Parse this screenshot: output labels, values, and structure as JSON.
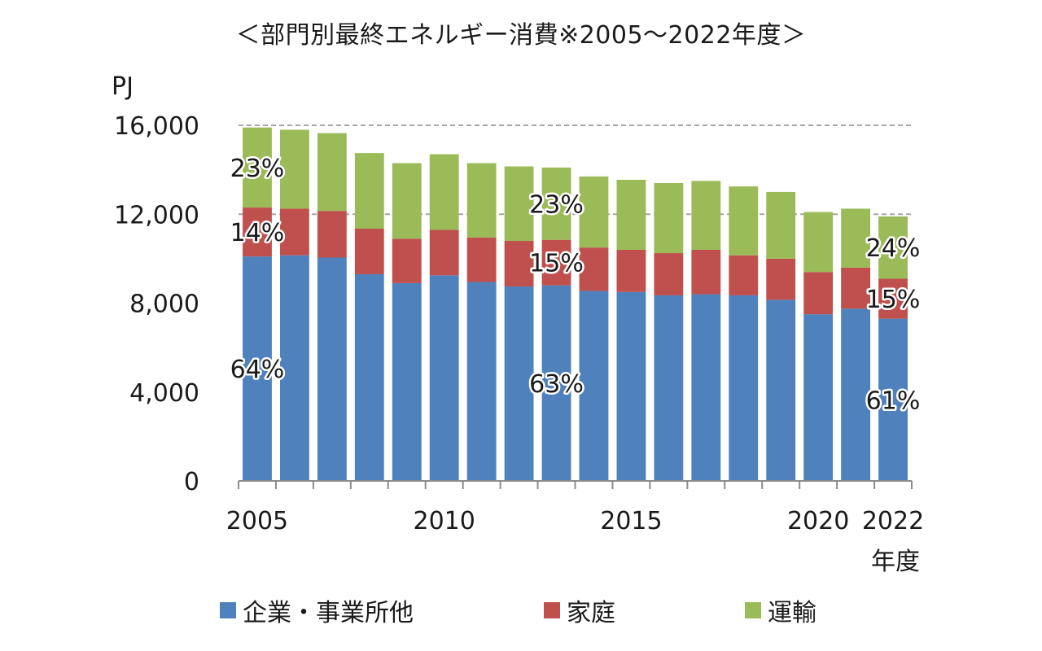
{
  "chart_data": {
    "type": "bar",
    "stacked": true,
    "title": "＜部門別最終エネルギー消費※2005～2022年度＞",
    "ylabel": "PJ",
    "xlabel": "年度",
    "ylim": [
      0,
      16000
    ],
    "yticks": [
      "0",
      "4,000",
      "8,000",
      "12,000",
      "16,000"
    ],
    "ytick_values": [
      0,
      4000,
      8000,
      12000,
      16000
    ],
    "grid": "dashed at 12000 and 16000",
    "x_tick_labels": {
      "2005": "2005",
      "2010": "2010",
      "2015": "2015",
      "2020": "2020",
      "2022": "2022"
    },
    "categories": [
      "2005",
      "2006",
      "2007",
      "2008",
      "2009",
      "2010",
      "2011",
      "2012",
      "2013",
      "2014",
      "2015",
      "2016",
      "2017",
      "2018",
      "2019",
      "2020",
      "2021",
      "2022"
    ],
    "series": [
      {
        "name": "企業・事業所他",
        "color": "#4f81bd",
        "values": [
          10100,
          10150,
          10050,
          9300,
          8900,
          9250,
          8950,
          8750,
          8800,
          8550,
          8500,
          8350,
          8400,
          8350,
          8150,
          7500,
          7750,
          7300
        ]
      },
      {
        "name": "家庭",
        "color": "#c0504d",
        "values": [
          2200,
          2100,
          2100,
          2050,
          2000,
          2050,
          2000,
          2050,
          2050,
          1950,
          1900,
          1900,
          2000,
          1800,
          1850,
          1900,
          1850,
          1800
        ]
      },
      {
        "name": "運輸",
        "color": "#9bbb59",
        "values": [
          3600,
          3550,
          3500,
          3400,
          3400,
          3400,
          3350,
          3350,
          3250,
          3200,
          3150,
          3150,
          3100,
          3100,
          3000,
          2700,
          2650,
          2800
        ]
      }
    ],
    "annotations": [
      {
        "category": "2005",
        "series": 0,
        "text": "64%"
      },
      {
        "category": "2005",
        "series": 1,
        "text": "14%"
      },
      {
        "category": "2005",
        "series": 2,
        "text": "23%"
      },
      {
        "category": "2013",
        "series": 0,
        "text": "63%"
      },
      {
        "category": "2013",
        "series": 1,
        "text": "15%"
      },
      {
        "category": "2013",
        "series": 2,
        "text": "23%"
      },
      {
        "category": "2022",
        "series": 0,
        "text": "61%"
      },
      {
        "category": "2022",
        "series": 1,
        "text": "15%"
      },
      {
        "category": "2022",
        "series": 2,
        "text": "24%"
      }
    ],
    "legend_position": "bottom"
  }
}
